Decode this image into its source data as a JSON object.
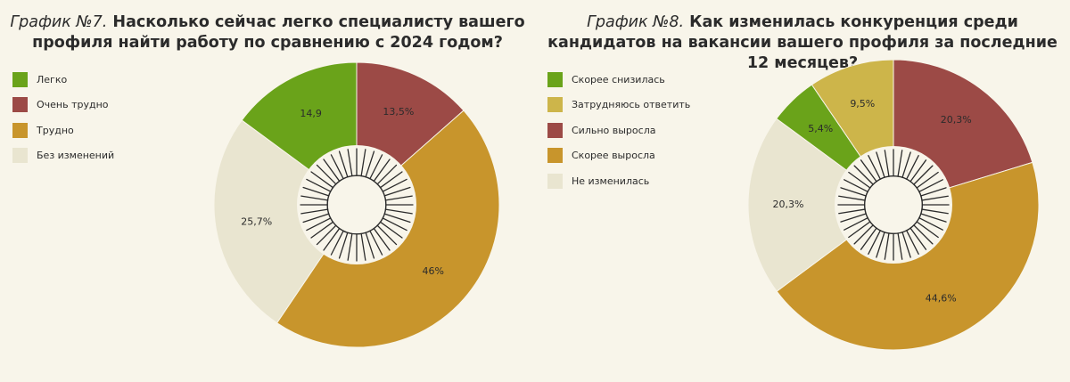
{
  "charts": [
    {
      "title_lead": "График №7.",
      "title_rest": " Насколько сейчас легко специалисту вашего профиля найти работу по сравнению с 2024 годом?",
      "legend": [
        {
          "label": "Легко",
          "color": "#6aa31a"
        },
        {
          "label": "Очень трудно",
          "color": "#9c4a46"
        },
        {
          "label": "Трудно",
          "color": "#c8952c"
        },
        {
          "label": "Без изменений",
          "color": "#e9e5d0"
        }
      ]
    },
    {
      "title_lead": "График №8.",
      "title_rest": " Как изменилась конкуренция среди кандидатов на вакансии вашего профиля за последние 12 месяцев?",
      "legend": [
        {
          "label": "Скорее снизилась",
          "color": "#6aa31a"
        },
        {
          "label": "Затрудняюсь ответить",
          "color": "#cdb54a"
        },
        {
          "label": "Сильно выросла",
          "color": "#9c4a46"
        },
        {
          "label": "Скорее выросла",
          "color": "#c8952c"
        },
        {
          "label": "Не изменилась",
          "color": "#e9e5d0"
        }
      ]
    }
  ],
  "chart_data": [
    {
      "type": "pie",
      "title": "Насколько сейчас легко специалисту вашего профиля найти работу по сравнению с 2024 годом?",
      "slices": [
        {
          "name": "Очень трудно",
          "value": 13.5,
          "label": "13,5%",
          "color": "#9c4a46"
        },
        {
          "name": "Трудно",
          "value": 46,
          "label": "46%",
          "color": "#c8952c"
        },
        {
          "name": "Без изменений",
          "value": 25.7,
          "label": "25,7%",
          "color": "#e9e5d0"
        },
        {
          "name": "Легко",
          "value": 14.9,
          "label": "14,9",
          "color": "#6aa31a"
        }
      ],
      "start_angle_deg": 0,
      "direction": "clockwise",
      "donut": true
    },
    {
      "type": "pie",
      "title": "Как изменилась конкуренция среди кандидатов на вакансии вашего профиля за последние 12 месяцев?",
      "slices": [
        {
          "name": "Сильно выросла",
          "value": 20.3,
          "label": "20,3%",
          "color": "#9c4a46"
        },
        {
          "name": "Скорее выросла",
          "value": 44.6,
          "label": "44,6%",
          "color": "#c8952c"
        },
        {
          "name": "Не изменилась",
          "value": 20.3,
          "label": "20,3%",
          "color": "#e9e5d0"
        },
        {
          "name": "Скорее снизилась",
          "value": 5.4,
          "label": "5,4%",
          "color": "#6aa31a"
        },
        {
          "name": "Затрудняюсь ответить",
          "value": 9.5,
          "label": "9,5%",
          "color": "#cdb54a"
        }
      ],
      "start_angle_deg": 0,
      "direction": "clockwise",
      "donut": true
    }
  ]
}
